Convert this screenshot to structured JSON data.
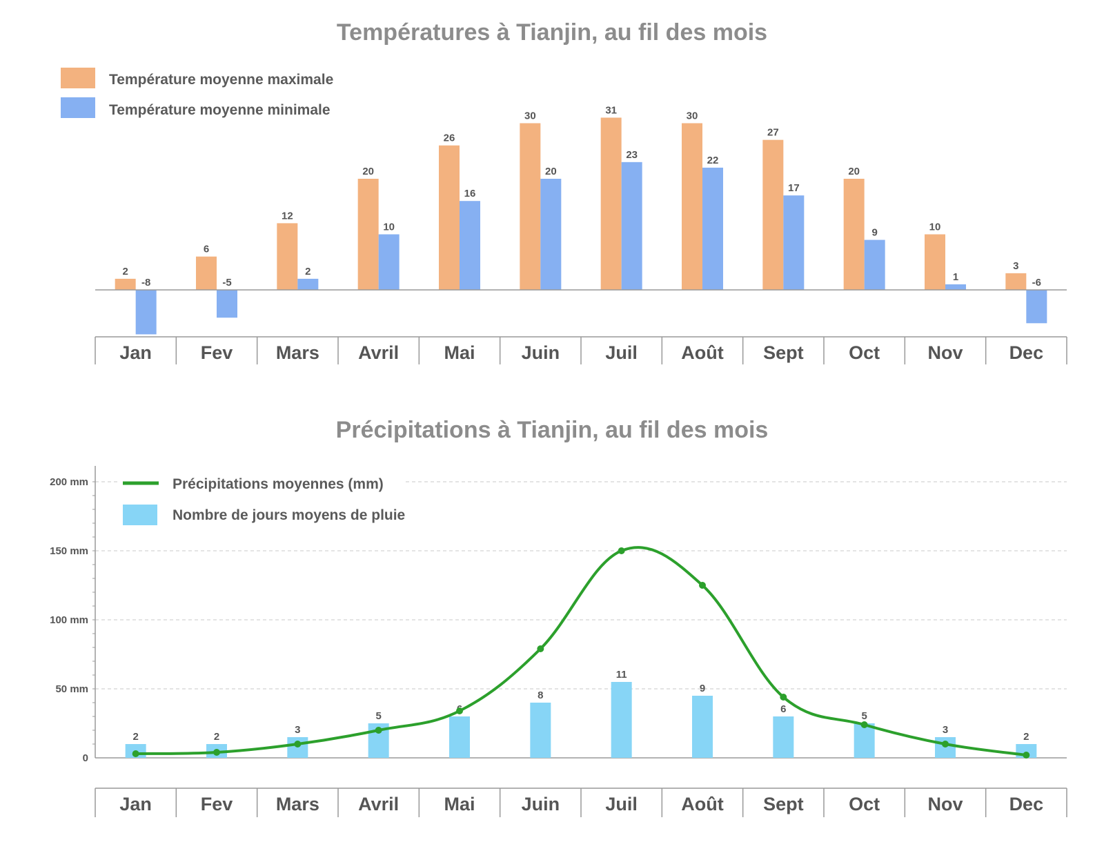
{
  "colors": {
    "max_temp": "#f3b27f",
    "min_temp": "#86b0f2",
    "precip_line": "#2ca02c",
    "rain_days": "#87d5f6",
    "title": "#8c8c8c",
    "text": "#555555",
    "axis": "#999999",
    "grid": "#c8c8c8"
  },
  "chart_data": [
    {
      "type": "bar",
      "title": "Températures à Tianjin, au fil des mois",
      "categories": [
        "Jan",
        "Fev",
        "Mars",
        "Avril",
        "Mai",
        "Juin",
        "Juil",
        "Août",
        "Sept",
        "Oct",
        "Nov",
        "Dec"
      ],
      "series": [
        {
          "name": "Température moyenne maximale",
          "values": [
            2,
            6,
            12,
            20,
            26,
            30,
            31,
            30,
            27,
            20,
            10,
            3
          ]
        },
        {
          "name": "Température moyenne minimale",
          "values": [
            -8,
            -5,
            2,
            10,
            16,
            20,
            23,
            22,
            17,
            9,
            1,
            -6
          ]
        }
      ],
      "legend": "top-left",
      "data_labels": true,
      "grid": false
    },
    {
      "type": "line",
      "title": "Précipitations à Tianjin, au fil des mois",
      "categories": [
        "Jan",
        "Fev",
        "Mars",
        "Avril",
        "Mai",
        "Juin",
        "Juil",
        "Août",
        "Sept",
        "Oct",
        "Nov",
        "Dec"
      ],
      "series": [
        {
          "name": "Précipitations moyennes (mm)",
          "type": "line",
          "values": [
            3,
            4,
            10,
            20,
            34,
            79,
            150,
            125,
            44,
            24,
            10,
            2
          ]
        },
        {
          "name": "Nombre de jours moyens de pluie",
          "type": "bar",
          "values": [
            2,
            2,
            3,
            5,
            6,
            8,
            11,
            9,
            6,
            5,
            3,
            2
          ]
        }
      ],
      "y_ticks": [
        "0",
        "50 mm",
        "100 mm",
        "150 mm",
        "200 mm"
      ],
      "ylim": [
        0,
        200
      ],
      "legend": "top-left",
      "grid": true
    }
  ]
}
